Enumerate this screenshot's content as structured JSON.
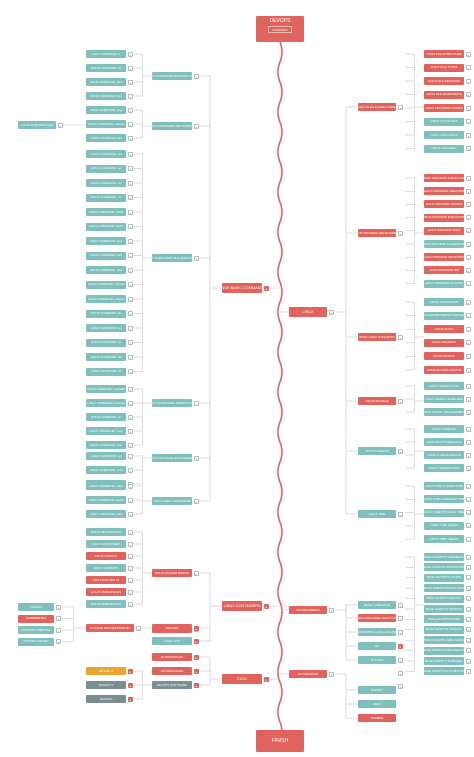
{
  "header": {
    "title": "DEVOPS",
    "subtitle": "ROADMAP"
  },
  "finish": "FINISH",
  "colors": {
    "teal": "#7fbfbc",
    "red": "#e0645d",
    "gold": "#e9a52f",
    "dark": "#7b8e92",
    "wire": "#c8c8c8",
    "spine": "#e0645d"
  },
  "left": {
    "l1_commands": [
      "LINUX COMMAND: ls",
      "LINUX COMMAND: cd",
      "LINUX COMMAND: pwd",
      "LINUX COMMAND: find"
    ],
    "l1_network": [
      "LINUX COMMAND: ping",
      "LINUX COMMAND: netstat",
      "LINUX COMMAND: ssh"
    ],
    "l1_ops": [
      "LINUX COMMAND: cat",
      "LINUX COMMAND: cp",
      "LINUX COMMAND: mv",
      "LINUX COMMAND: rm",
      "LINUX COMMAND: mkdir",
      "LINUX COMMAND: touch",
      "LINUX COMMAND: grep",
      "LINUX COMMAND: sed",
      "LINUX COMMAND: awk",
      "LINUX COMMAND: chmod",
      "LINUX COMMAND: chown",
      "LINUX COMMAND: tar",
      "LINUX COMMAND: top",
      "LINUX COMMAND: ps",
      "LINUX COMMAND: kill",
      "LINUX COMMAND: df"
    ],
    "l1_perm": [
      "LINUX COMMAND: useradd",
      "LINUX COMMAND: passwd",
      "LINUX COMMAND: su",
      "LINUX COMMAND: sudo",
      "LINUX COMMAND: who"
    ],
    "l1_pkg": [
      "LINUX COMMAND: apt",
      "LINUX COMMAND: yum",
      "LINUX COMMAND: rpm"
    ],
    "l1_shell": [
      "LINUX COMMAND: echo",
      "LINUX COMMAND: export",
      "LINUX COMMAND: alias"
    ],
    "c1": [
      "LINUX NETWORKING",
      "LINUX CONTAINERS",
      "LINUX CHROOT",
      "LINUX CGROUPS",
      "LINUX DOCKER V1",
      "LINUX NAMESPACES",
      "LINUX NAMESPACES"
    ],
    "orch": [
      "NOMAD",
      "KUBERNETES",
      "DOCKER COMPOSE",
      "DOCKER SWARM"
    ],
    "ci": [
      "GITLAB CI",
      "TEAMCITY",
      "JENKINS"
    ],
    "mid": [
      "LINUX COMMANDS INTRODUCTION",
      "LINUX COMMANDS NETWORKING",
      "LINUX COMMANDS FILE OPERATIONS",
      "LINUX COMMANDS PERMISSIONS",
      "LINUX PACKAGE MANAGEMENT",
      "LINUX SHELL COMMANDS",
      "LINUX DOCKER BASICS",
      "DOCKER ORCHESTRATION"
    ],
    "big": [
      "LINUX BASIC COMMANDS",
      "LINUX CONTAINERS",
      "DOCKER",
      "LINUX LVM",
      "CI PRINCIPLES",
      "CD PRINCIPLES",
      "DEVOPS SOFTWARE",
      "CI/CD"
    ],
    "intro": "LINUX INTRODUCTION"
  },
  "right": {
    "hub": [
      "LINUX",
      "PROGRAMMING",
      "AUTOMATION"
    ],
    "cat": [
      "LINUX FILES & DIRECTORIES",
      "LINUX PROCESS MANAGEMENT",
      "BASH LINUX CONCEPTS",
      "LINUX SIGNALS",
      "LINUX THREADS",
      "LINUX TIME"
    ],
    "files": [
      "LINUX FILE STRUCTURE",
      "LINUX FILE TYPES",
      "LINUX FILE METADATA",
      "LINUX FILE READ/WRITE",
      "LINUX FILE DIRECTORIES",
      "LINUX MULTIFILES",
      "LINUX FILE LOCKS",
      "LINUX FILE SEEK"
    ],
    "proc": [
      "LINUX PROCESS STRUCTURE",
      "LINUX PROCESS CREATION",
      "LINUX PROCESS STATES",
      "LINUX PROCESS EXECUTION",
      "LINUX PROCESS WAIT",
      "LINUX PROCESS SCHEDULING",
      "LINUX PROCESS PRIORITIES",
      "LINUX PROCESS IDS",
      "LINUX PROCESS GROUPS"
    ],
    "bash": [
      "LINUX STANDARDS",
      "LINUX ENVIRONMENT VARIABLES",
      "LINUX POSIX",
      "LINUX READERS",
      "POSIX BASICS",
      "LINUX ACCESS RIGHTS"
    ],
    "sig": [
      "LINUX SIGNALS LIST",
      "LINUX SIGNAL HANDLERS",
      "LINUX SIGNAL MANAGEMENT"
    ],
    "thr": [
      "LINUX THREADS",
      "LINUX MULTITHREADING",
      "LINUX THREAD BASICS",
      "LINUX THREAD SYNC"
    ],
    "time": [
      "LINUX TIME SYSTEM TIME",
      "LINUX TIME CALENDAR TIME",
      "LINUX TIME PROCESS TIME",
      "LINUX TIME SLEEP",
      "LINUX TIME TIMERS"
    ],
    "prog": [
      "BASH LANGUAGE",
      "GO",
      "PYTHON"
    ],
    "progsub": [
      "BASH LANGUAGE: DATA TYPES",
      "PROGRAMMING LANGUAGE BASICS"
    ],
    "bashl": [
      "BASH SCRIPTS VARIABLES",
      "BASH SCRIPTS CONDITIONS",
      "BASH SCRIPTS LOOPS",
      "BASH SCRIPTS FUNCTIONS",
      "BASH SCRIPTS ARRAYS",
      "BASH SCRIPTS STRINGS",
      "BASH SCRIPTS FILES",
      "BASH SCRIPTS SIGNALS",
      "BASH SCRIPTS DEBUGGING",
      "BASH SCRIPTS ARGUMENTS",
      "BASH SCRIPTS SUBSHELL",
      "BASH SCRIPTS AUTOMATION"
    ],
    "auto": [
      "PUPPET",
      "CHEF",
      "ANSIBLE"
    ]
  }
}
